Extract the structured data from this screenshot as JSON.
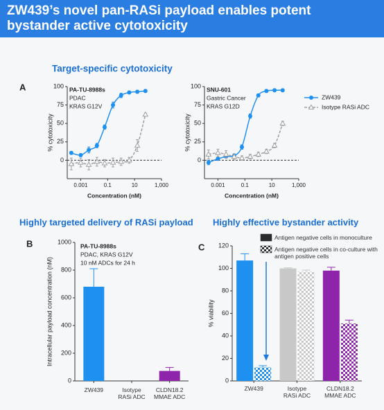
{
  "header": {
    "title": "ZW439’s novel pan-RASi payload enables potent bystander active cytotoxicity"
  },
  "sections": [
    "Target-specific cytotoxicity",
    "Highly targeted delivery of RASi payload",
    "Highly effective bystander activity"
  ],
  "panels": [
    "A",
    "B",
    "C"
  ],
  "chart_data": [
    {
      "type": "line",
      "xscale": "log",
      "x_label": "Concentration (nM)",
      "y_label": "% cytotoxicity",
      "annotation": [
        "PA-TU-8988s",
        "PDAC",
        "KRAS G12V"
      ],
      "xlim": [
        0.0001,
        1000
      ],
      "xticks": [
        {
          "value": 0.001,
          "label": "0.001"
        },
        0.1,
        10,
        {
          "value": 1000,
          "label": "1,000"
        }
      ],
      "ylim": [
        -25,
        100
      ],
      "yticks": [
        0,
        25,
        50,
        75,
        100
      ],
      "zero_line": true,
      "x": [
        0.0002,
        0.001,
        0.004,
        0.016,
        0.06,
        0.25,
        1,
        4,
        16,
        64
      ],
      "series": [
        {
          "color": "#1e90f0",
          "marker": "circle",
          "dash": false,
          "values": [
            10,
            7,
            14,
            20,
            45,
            75,
            88,
            92,
            93,
            94
          ],
          "errors": [
            2,
            2,
            4,
            3,
            3,
            4,
            3,
            2,
            2,
            2
          ]
        },
        {
          "color": "#9e9e9e",
          "marker": "triangle",
          "dash": true,
          "values": [
            -5,
            -3,
            -6,
            -2,
            -4,
            -3,
            -2,
            0,
            20,
            62
          ],
          "errors": [
            8,
            6,
            7,
            6,
            5,
            6,
            5,
            4,
            8,
            2
          ]
        }
      ]
    },
    {
      "type": "line",
      "xscale": "log",
      "x_label": "Concentration (nM)",
      "y_label": "% cytotoxicity",
      "annotation": [
        "SNU-601",
        "Gastric Cancer",
        "KRAS G12D"
      ],
      "xlim": [
        0.0001,
        1000
      ],
      "xticks": [
        {
          "value": 0.001,
          "label": "0.001"
        },
        0.1,
        10,
        {
          "value": 1000,
          "label": "1,000"
        }
      ],
      "ylim": [
        -25,
        100
      ],
      "yticks": [
        0,
        25,
        50,
        75,
        100
      ],
      "zero_line": true,
      "legend": "right",
      "x": [
        0.0002,
        0.001,
        0.004,
        0.016,
        0.06,
        0.25,
        1,
        4,
        16,
        64
      ],
      "series": [
        {
          "name": "ZW439",
          "color": "#1e90f0",
          "marker": "circle",
          "dash": false,
          "values": [
            -3,
            2,
            5,
            6,
            18,
            60,
            88,
            94,
            95,
            95
          ],
          "errors": [
            3,
            2,
            2,
            2,
            3,
            3,
            2,
            2,
            2,
            2
          ]
        },
        {
          "name": "Isotype RASi ADC",
          "color": "#9e9e9e",
          "marker": "triangle",
          "dash": true,
          "values": [
            8,
            10,
            8,
            5,
            3,
            5,
            8,
            12,
            20,
            50
          ],
          "errors": [
            6,
            5,
            5,
            4,
            3,
            3,
            3,
            3,
            3,
            3
          ]
        }
      ]
    },
    {
      "type": "bar",
      "y_label": "Intracellular payload concentration (nM)",
      "annotation": [
        "PA-TU-8988s",
        "PDAC, KRAS G12V",
        "10 nM ADCs for 24 h"
      ],
      "categories": [
        "ZW439",
        "Isotype RASi ADC",
        "CLDN18.2 MMAE ADC"
      ],
      "colors": [
        "#1e90f0",
        "#bdbdbd",
        "#8e24aa"
      ],
      "values": [
        680,
        0,
        72
      ],
      "errors": [
        130,
        0,
        25
      ],
      "ylim": [
        0,
        1000
      ],
      "yticks": [
        0,
        200,
        400,
        600,
        800,
        1000
      ]
    },
    {
      "type": "grouped_bar",
      "y_label": "% viability",
      "categories": [
        "ZW439",
        "Isotype RASi ADC",
        "CLDN18.2 MMAE ADC"
      ],
      "colors": [
        "#1e90f0",
        "#c8c8c8",
        "#8e24aa"
      ],
      "series": [
        {
          "name": "Antigen negative cells in monoculture",
          "color": "#2b2b2b",
          "pattern": "solid",
          "values": [
            107,
            100,
            98
          ],
          "errors": [
            6,
            0.5,
            3
          ]
        },
        {
          "name": "Antigen negative cells in co-culture with antigen positive cells",
          "color": "#2b2b2b",
          "pattern": "checker",
          "values": [
            12,
            97,
            51
          ],
          "errors": [
            1.5,
            1.5,
            3
          ]
        }
      ],
      "ylim": [
        0,
        120
      ],
      "yticks": [
        0,
        20,
        40,
        60,
        80,
        100,
        120
      ]
    }
  ]
}
